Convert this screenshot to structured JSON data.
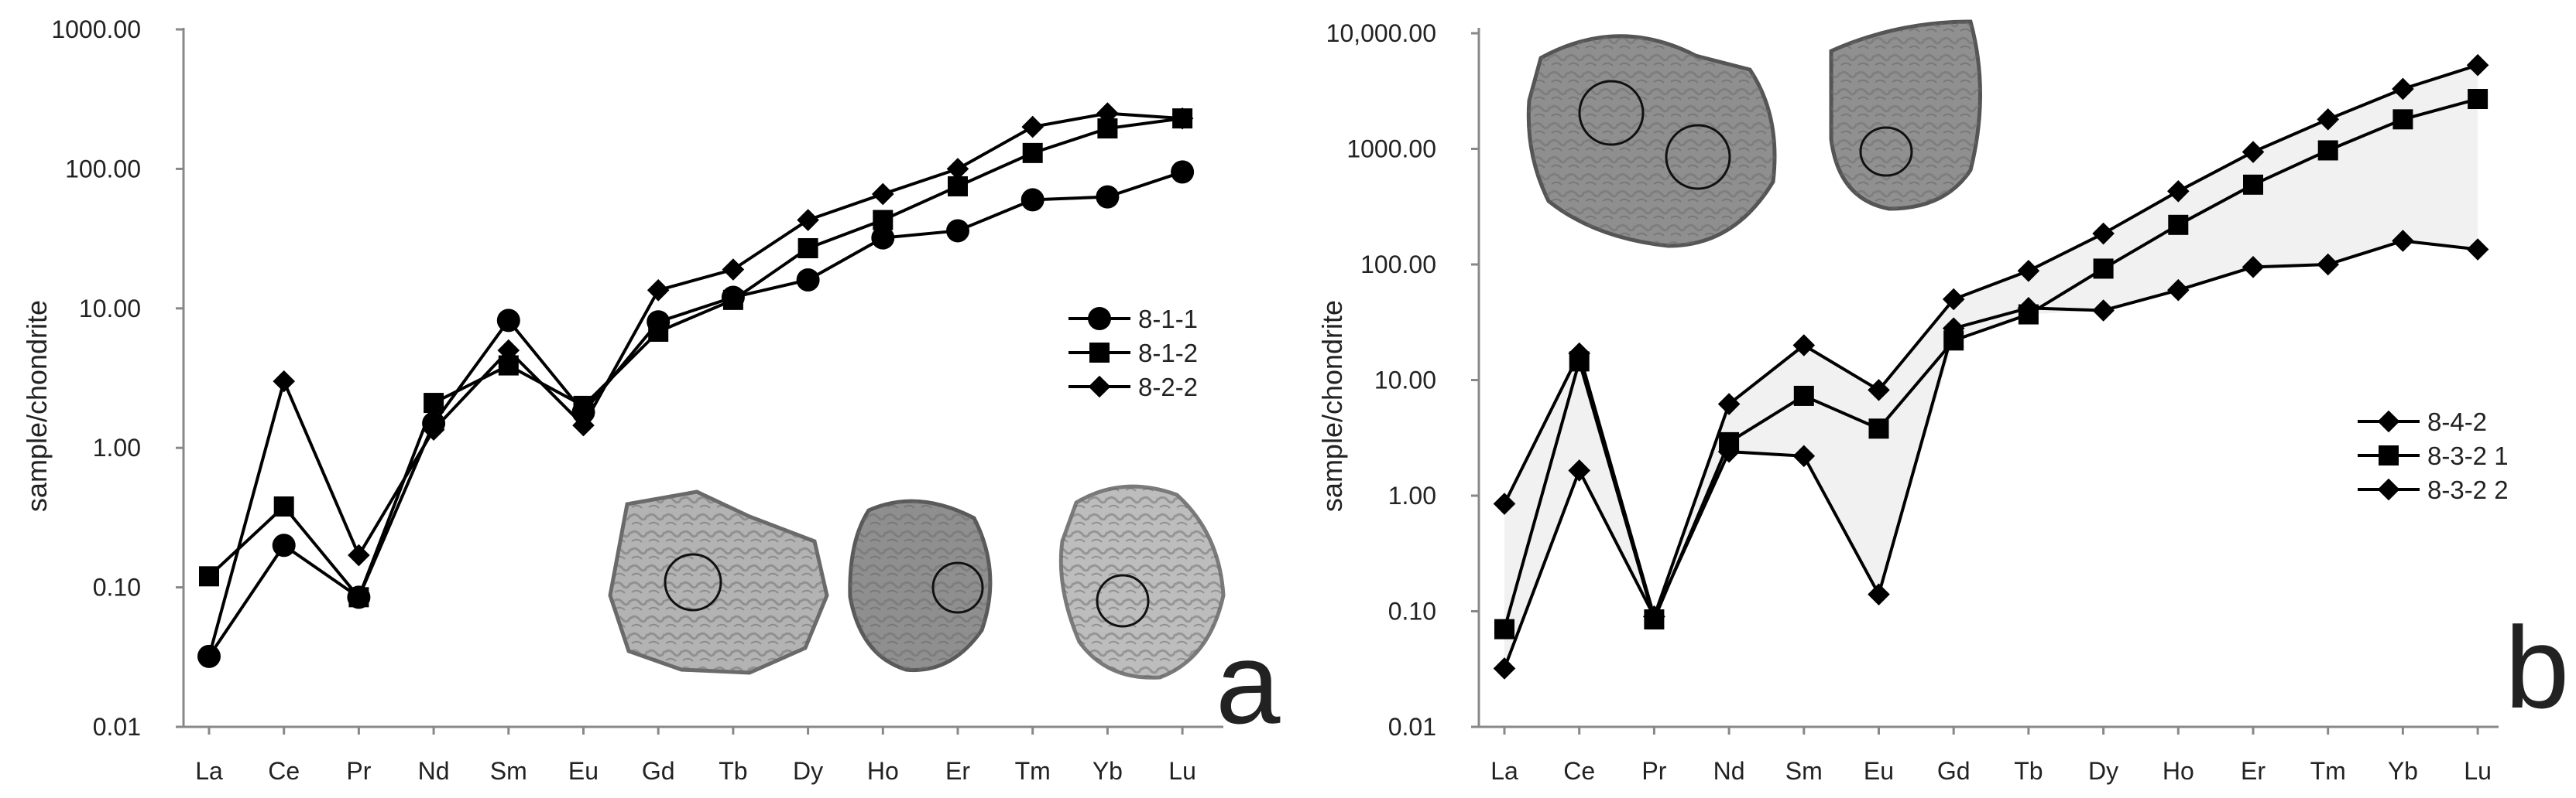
{
  "chart_data": [
    {
      "type": "line",
      "panel_label": "a",
      "ylabel": "sample/chondrite",
      "yscale": "log",
      "ylim": [
        0.01,
        1000
      ],
      "ytick_labels": [
        "0.01",
        "0.10",
        "1.00",
        "10.00",
        "100.00",
        "1000.00"
      ],
      "categories": [
        "La",
        "Ce",
        "Pr",
        "Nd",
        "Sm",
        "Eu",
        "Gd",
        "Tb",
        "Dy",
        "Ho",
        "Er",
        "Tm",
        "Yb",
        "Lu"
      ],
      "legend_position": "right",
      "series": [
        {
          "name": "8-1-1",
          "marker": "circle",
          "values": [
            0.032,
            0.2,
            0.085,
            1.5,
            8.2,
            1.8,
            8.0,
            12.0,
            16.0,
            32.0,
            36.0,
            60.0,
            63.0,
            95.0
          ]
        },
        {
          "name": "8-1-2",
          "marker": "square",
          "values": [
            0.12,
            0.38,
            0.085,
            2.1,
            3.9,
            2.0,
            6.8,
            11.5,
            27.0,
            43.0,
            75.0,
            130.0,
            195.0,
            230.0
          ]
        },
        {
          "name": "8-2-2",
          "marker": "diamond",
          "values": [
            0.032,
            3.0,
            0.17,
            1.35,
            5.0,
            1.45,
            13.5,
            19.0,
            43.0,
            66.0,
            100.0,
            200.0,
            250.0,
            230.0
          ]
        }
      ],
      "insets": [
        "sample-photo",
        "sample-photo",
        "sample-photo"
      ]
    },
    {
      "type": "line",
      "panel_label": "b",
      "ylabel": "sample/chondrite",
      "yscale": "log",
      "ylim": [
        0.01,
        10000
      ],
      "ytick_labels": [
        "0.01",
        "0.10",
        "1.00",
        "10.00",
        "100.00",
        "1000.00",
        "10,000.00"
      ],
      "categories": [
        "La",
        "Ce",
        "Pr",
        "Nd",
        "Sm",
        "Eu",
        "Gd",
        "Tb",
        "Dy",
        "Ho",
        "Er",
        "Tm",
        "Yb",
        "Lu"
      ],
      "legend_position": "right",
      "series": [
        {
          "name": "8-4-2",
          "marker": "diamond",
          "values": [
            0.85,
            17.0,
            0.09,
            6.2,
            20.0,
            8.2,
            50.0,
            88.0,
            185.0,
            430.0,
            940.0,
            1800.0,
            3300.0,
            5300.0
          ]
        },
        {
          "name": "8-3-2 1",
          "marker": "square",
          "values": [
            0.07,
            14.5,
            0.085,
            2.9,
            7.3,
            3.8,
            22.0,
            37.0,
            92.0,
            220.0,
            490.0,
            970.0,
            1800.0,
            2700.0
          ]
        },
        {
          "name": "8-3-2 2",
          "marker": "diamond",
          "values": [
            0.032,
            1.65,
            0.09,
            2.4,
            2.2,
            0.14,
            28.0,
            42.0,
            40.0,
            60.0,
            95.0,
            100.0,
            160.0,
            135.0
          ]
        }
      ],
      "insets": [
        "sample-photo",
        "sample-photo"
      ]
    }
  ]
}
